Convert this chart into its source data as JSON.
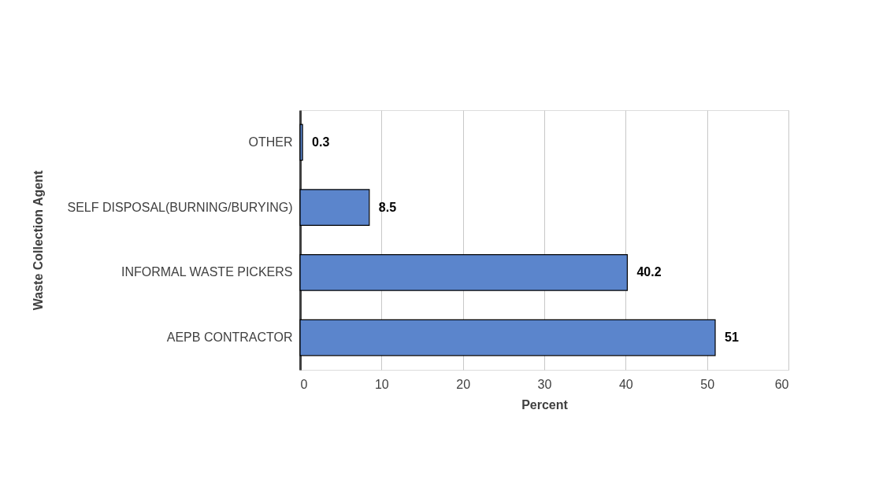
{
  "chart_data": {
    "type": "bar",
    "orientation": "horizontal",
    "xlabel": "Percent",
    "ylabel": "Waste Collection Agent",
    "categories": [
      "OTHER",
      "SELF DISPOSAL(BURNING/BURYING)",
      "INFORMAL WASTE PICKERS",
      "AEPB CONTRACTOR"
    ],
    "values": [
      0.3,
      8.5,
      40.2,
      51
    ],
    "color": "#5b85cc",
    "xlim": [
      0,
      60
    ],
    "xticks": [
      0,
      10,
      20,
      30,
      40,
      50,
      60
    ],
    "grid": "x",
    "data_labels": true
  }
}
